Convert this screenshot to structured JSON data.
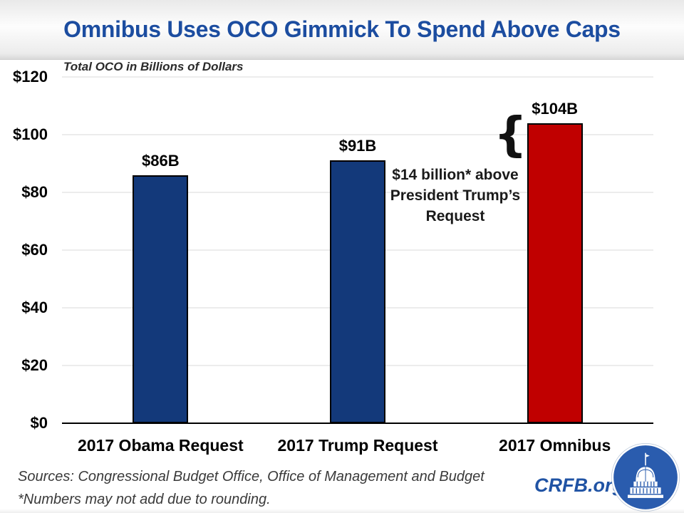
{
  "title": "Omnibus Uses OCO Gimmick To Spend Above Caps",
  "subtitle": "Total OCO in Billions of Dollars",
  "chart_data": {
    "type": "bar",
    "categories": [
      "2017 Obama Request",
      "2017 Trump Request",
      "2017 Omnibus"
    ],
    "values": [
      86,
      91,
      104
    ],
    "bar_labels": [
      "$86B",
      "$91B",
      "$104B"
    ],
    "bar_colors": [
      "#13397A",
      "#13397A",
      "#C00000"
    ],
    "title": "Omnibus Uses OCO Gimmick To Spend Above Caps",
    "xlabel": "",
    "ylabel": "Total OCO in Billions of Dollars",
    "ylim": [
      0,
      120
    ],
    "ytick_step": 20,
    "ytick_labels": [
      "$0",
      "$20",
      "$40",
      "$60",
      "$80",
      "$100",
      "$120"
    ],
    "grid": true,
    "legend": false,
    "annotation": "$14 billion* above President Trump’s Request"
  },
  "annotation": {
    "brace": "{",
    "lines": [
      "$14 billion* above",
      "President Trump’s",
      "Request"
    ]
  },
  "footer": {
    "sources": "Sources: Congressional Budget Office, Office of Management and Budget",
    "note": "*Numbers may not add due to rounding.",
    "brand": "CRFB.org"
  },
  "colors": {
    "title_blue": "#1C4DA0",
    "bar_blue": "#13397A",
    "bar_red": "#C00000",
    "brand_blue": "#2053A4",
    "gridline_gray": "#D9D9D9",
    "axis_black": "#000000",
    "logo_blue": "#2A5CAE"
  },
  "icons": {
    "logo": "capitol-building-icon"
  }
}
